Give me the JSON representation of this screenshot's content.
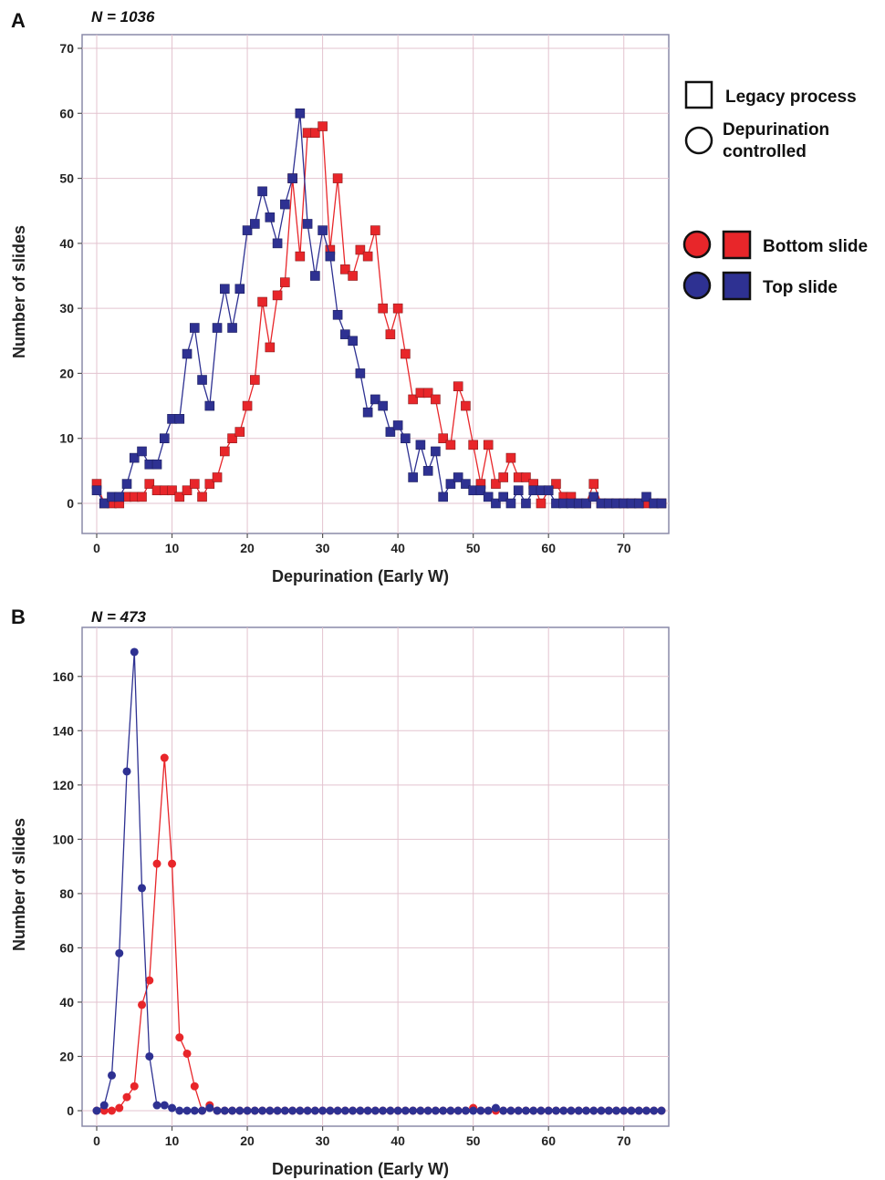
{
  "chart_data": [
    {
      "panel": "A",
      "annotation": "N = 1036",
      "type": "line",
      "marker": "square",
      "xlabel": "Depurination (Early W)",
      "ylabel": "Number of slides",
      "xlim": [
        0,
        75
      ],
      "ylim": [
        0,
        70
      ],
      "xticks": [
        0,
        10,
        20,
        30,
        40,
        50,
        60,
        70
      ],
      "yticks": [
        0,
        10,
        20,
        30,
        40,
        50,
        60,
        70
      ],
      "grid": true,
      "series": [
        {
          "name": "Bottom slide",
          "color": "#e8262a",
          "x": [
            0,
            1,
            2,
            3,
            4,
            5,
            6,
            7,
            8,
            9,
            10,
            11,
            12,
            13,
            14,
            15,
            16,
            17,
            18,
            19,
            20,
            21,
            22,
            23,
            24,
            25,
            26,
            27,
            28,
            29,
            30,
            31,
            32,
            33,
            34,
            35,
            36,
            37,
            38,
            39,
            40,
            41,
            42,
            43,
            44,
            45,
            46,
            47,
            48,
            49,
            50,
            51,
            52,
            53,
            54,
            55,
            56,
            57,
            58,
            59,
            60,
            61,
            62,
            63,
            64,
            65,
            66,
            67,
            68,
            69,
            70,
            71,
            72,
            73,
            74,
            75
          ],
          "values": [
            3,
            0,
            0,
            0,
            1,
            1,
            1,
            3,
            2,
            2,
            2,
            1,
            2,
            3,
            1,
            3,
            4,
            8,
            10,
            11,
            15,
            19,
            31,
            24,
            32,
            34,
            50,
            38,
            57,
            57,
            58,
            39,
            50,
            36,
            35,
            39,
            38,
            42,
            30,
            26,
            30,
            23,
            16,
            17,
            17,
            16,
            10,
            9,
            18,
            15,
            9,
            3,
            9,
            3,
            4,
            7,
            4,
            4,
            3,
            0,
            2,
            3,
            1,
            1,
            0,
            0,
            3,
            0,
            0,
            0,
            0,
            0,
            0,
            0,
            0,
            0
          ]
        },
        {
          "name": "Top slide",
          "color": "#2e3192",
          "x": [
            0,
            1,
            2,
            3,
            4,
            5,
            6,
            7,
            8,
            9,
            10,
            11,
            12,
            13,
            14,
            15,
            16,
            17,
            18,
            19,
            20,
            21,
            22,
            23,
            24,
            25,
            26,
            27,
            28,
            29,
            30,
            31,
            32,
            33,
            34,
            35,
            36,
            37,
            38,
            39,
            40,
            41,
            42,
            43,
            44,
            45,
            46,
            47,
            48,
            49,
            50,
            51,
            52,
            53,
            54,
            55,
            56,
            57,
            58,
            59,
            60,
            61,
            62,
            63,
            64,
            65,
            66,
            67,
            68,
            69,
            70,
            71,
            72,
            73,
            74,
            75
          ],
          "values": [
            2,
            0,
            1,
            1,
            3,
            7,
            8,
            6,
            6,
            10,
            13,
            13,
            23,
            27,
            19,
            15,
            27,
            33,
            27,
            33,
            42,
            43,
            48,
            44,
            40,
            46,
            50,
            60,
            43,
            35,
            42,
            38,
            29,
            26,
            25,
            20,
            14,
            16,
            15,
            11,
            12,
            10,
            4,
            9,
            5,
            8,
            1,
            3,
            4,
            3,
            2,
            2,
            1,
            0,
            1,
            0,
            2,
            0,
            2,
            2,
            2,
            0,
            0,
            0,
            0,
            0,
            1,
            0,
            0,
            0,
            0,
            0,
            0,
            1,
            0,
            0
          ]
        }
      ]
    },
    {
      "panel": "B",
      "annotation": "N = 473",
      "type": "line",
      "marker": "circle",
      "xlabel": "Depurination (Early W)",
      "ylabel": "Number of slides",
      "xlim": [
        0,
        75
      ],
      "ylim": [
        0,
        170
      ],
      "xticks": [
        0,
        10,
        20,
        30,
        40,
        50,
        60,
        70
      ],
      "yticks": [
        0,
        20,
        40,
        60,
        80,
        100,
        120,
        140,
        160
      ],
      "grid": true,
      "series": [
        {
          "name": "Bottom slide",
          "color": "#e8262a",
          "x": [
            0,
            1,
            2,
            3,
            4,
            5,
            6,
            7,
            8,
            9,
            10,
            11,
            12,
            13,
            14,
            15,
            16,
            17,
            18,
            19,
            20,
            21,
            22,
            23,
            24,
            25,
            26,
            27,
            28,
            29,
            30,
            31,
            32,
            33,
            34,
            35,
            36,
            37,
            38,
            39,
            40,
            41,
            42,
            43,
            44,
            45,
            46,
            47,
            48,
            49,
            50,
            51,
            52,
            53,
            54,
            55,
            56,
            57,
            58,
            59,
            60,
            61,
            62,
            63,
            64,
            65,
            66,
            67,
            68,
            69,
            70,
            71,
            72,
            73,
            74,
            75
          ],
          "values": [
            0,
            0,
            0,
            1,
            5,
            9,
            39,
            48,
            91,
            130,
            91,
            27,
            21,
            9,
            0,
            2,
            0,
            0,
            0,
            0,
            0,
            0,
            0,
            0,
            0,
            0,
            0,
            0,
            0,
            0,
            0,
            0,
            0,
            0,
            0,
            0,
            0,
            0,
            0,
            0,
            0,
            0,
            0,
            0,
            0,
            0,
            0,
            0,
            0,
            0,
            1,
            0,
            0,
            0,
            0,
            0,
            0,
            0,
            0,
            0,
            0,
            0,
            0,
            0,
            0,
            0,
            0,
            0,
            0,
            0,
            0,
            0,
            0,
            0,
            0,
            0
          ]
        },
        {
          "name": "Top slide",
          "color": "#2e3192",
          "x": [
            0,
            1,
            2,
            3,
            4,
            5,
            6,
            7,
            8,
            9,
            10,
            11,
            12,
            13,
            14,
            15,
            16,
            17,
            18,
            19,
            20,
            21,
            22,
            23,
            24,
            25,
            26,
            27,
            28,
            29,
            30,
            31,
            32,
            33,
            34,
            35,
            36,
            37,
            38,
            39,
            40,
            41,
            42,
            43,
            44,
            45,
            46,
            47,
            48,
            49,
            50,
            51,
            52,
            53,
            54,
            55,
            56,
            57,
            58,
            59,
            60,
            61,
            62,
            63,
            64,
            65,
            66,
            67,
            68,
            69,
            70,
            71,
            72,
            73,
            74,
            75
          ],
          "values": [
            0,
            2,
            13,
            58,
            125,
            169,
            82,
            20,
            2,
            2,
            1,
            0,
            0,
            0,
            0,
            1,
            0,
            0,
            0,
            0,
            0,
            0,
            0,
            0,
            0,
            0,
            0,
            0,
            0,
            0,
            0,
            0,
            0,
            0,
            0,
            0,
            0,
            0,
            0,
            0,
            0,
            0,
            0,
            0,
            0,
            0,
            0,
            0,
            0,
            0,
            0,
            0,
            0,
            1,
            0,
            0,
            0,
            0,
            0,
            0,
            0,
            0,
            0,
            0,
            0,
            0,
            0,
            0,
            0,
            0,
            0,
            0,
            0,
            0,
            0,
            0
          ]
        }
      ]
    }
  ],
  "legend": {
    "legacy_process": "Legacy process",
    "depurination_controlled_line1": "Depurination",
    "depurination_controlled_line2": "controlled",
    "bottom_slide": "Bottom slide",
    "top_slide": "Top slide",
    "bottom_color": "#e8262a",
    "top_color": "#2e3192"
  }
}
